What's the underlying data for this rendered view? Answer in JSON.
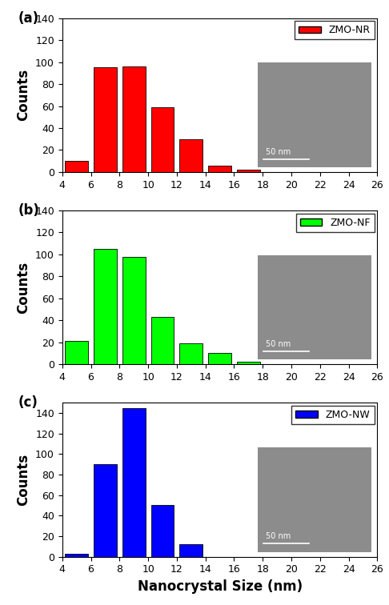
{
  "chart_data": [
    {
      "type": "bar",
      "title": "(a)",
      "y_label": "Counts",
      "x": [
        5,
        7,
        9,
        11,
        13,
        15,
        17
      ],
      "series": [
        {
          "name": "ZMO-NR",
          "color": "#ff0000",
          "values": [
            10,
            95,
            96,
            59,
            30,
            6,
            2
          ]
        }
      ],
      "xlim": [
        4,
        26
      ],
      "xticks": [
        4,
        6,
        8,
        10,
        12,
        14,
        16,
        18,
        20,
        22,
        24,
        26
      ],
      "ylim": [
        0,
        140
      ],
      "yticks": [
        0,
        20,
        40,
        60,
        80,
        100,
        120,
        140
      ],
      "legend": "upper right",
      "annotations": [
        "50 nm"
      ]
    },
    {
      "type": "bar",
      "title": "(b)",
      "y_label": "Counts",
      "x": [
        5,
        7,
        9,
        11,
        13,
        15,
        17
      ],
      "series": [
        {
          "name": "ZMO-NF",
          "color": "#00ff00",
          "values": [
            21,
            105,
            98,
            43,
            19,
            10,
            2
          ]
        }
      ],
      "xlim": [
        4,
        26
      ],
      "xticks": [
        4,
        6,
        8,
        10,
        12,
        14,
        16,
        18,
        20,
        22,
        24,
        26
      ],
      "ylim": [
        0,
        140
      ],
      "yticks": [
        0,
        20,
        40,
        60,
        80,
        100,
        120,
        140
      ],
      "legend": "upper right",
      "annotations": [
        "50 nm"
      ]
    },
    {
      "type": "bar",
      "title": "(c)",
      "y_label": "Counts",
      "x_label": "Nanocrystal Size (nm)",
      "x": [
        5,
        7,
        9,
        11,
        13
      ],
      "series": [
        {
          "name": "ZMO-NW",
          "color": "#0000ff",
          "values": [
            3,
            90,
            145,
            50,
            12
          ]
        }
      ],
      "xlim": [
        4,
        26
      ],
      "xticks": [
        4,
        6,
        8,
        10,
        12,
        14,
        16,
        18,
        20,
        22,
        24,
        26
      ],
      "ylim": [
        0,
        150
      ],
      "yticks": [
        0,
        20,
        40,
        60,
        80,
        100,
        120,
        140
      ],
      "legend": "upper right",
      "annotations": [
        "50 nm"
      ]
    }
  ]
}
